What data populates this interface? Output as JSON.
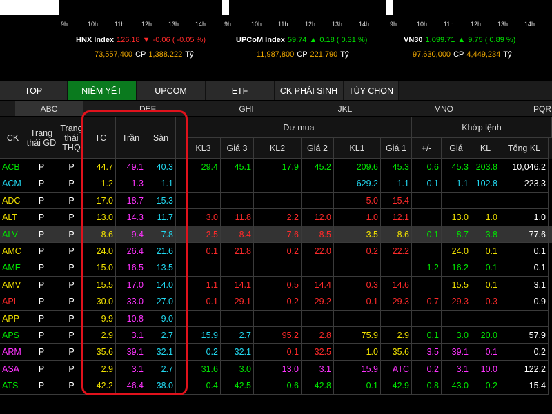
{
  "indices": [
    {
      "times": [
        "9h",
        "10h",
        "11h",
        "12h",
        "13h",
        "14h"
      ],
      "name": "HNX Index",
      "value": "126.18",
      "arrow": "▼",
      "change": "-0.06 ( -0.05 %)",
      "direction": "down",
      "volume": "73,557,400",
      "volume_unit": "CP",
      "turnover": "1,388.222",
      "turnover_unit": "Tỷ"
    },
    {
      "times": [
        "9h",
        "10h",
        "11h",
        "12h",
        "13h",
        "14h"
      ],
      "name": "UPCoM Index",
      "value": "59.74",
      "arrow": "▲",
      "change": "0.18 ( 0.31 %)",
      "direction": "up",
      "volume": "11,987,800",
      "volume_unit": "CP",
      "turnover": "221.790",
      "turnover_unit": "Tỷ"
    },
    {
      "times": [
        "9h",
        "10h",
        "11h",
        "12h",
        "13h",
        "14h"
      ],
      "name": "VN30",
      "value": "1,099.71",
      "arrow": "▲",
      "change": "9.75 ( 0.89 %)",
      "direction": "up",
      "volume": "97,630,000",
      "volume_unit": "CP",
      "turnover": "4,449,234",
      "turnover_unit": "Tỷ"
    }
  ],
  "tabs": [
    "TOP",
    "NIÊM YẾT",
    "UPCOM",
    "ETF",
    "CK PHÁI SINH",
    "TÙY CHỌN"
  ],
  "active_tab": 1,
  "subtabs": [
    "ABC",
    "DEF",
    "GHI",
    "JKL",
    "MNO",
    "PQR"
  ],
  "active_subtab": 0,
  "colors": {
    "up": "#00e600",
    "down": "#ff2a2a",
    "ref": "#f0e000",
    "ceil": "#ff33ff",
    "floor": "#22d8f0"
  },
  "table": {
    "headers": {
      "ck": "CK",
      "gd": "Trạng thái GD",
      "thq": "Trạng thái THQ",
      "tc": "TC",
      "tran": "Trần",
      "san": "Sàn",
      "bid_group": "Dư mua",
      "match_group": "Khớp lệnh",
      "sub": [
        "KL3",
        "Giá 3",
        "KL2",
        "Giá 2",
        "KL1",
        "Giá 1",
        "+/-",
        "Giá",
        "KL",
        "Tổng KL"
      ]
    },
    "highlighted_row": 4,
    "rows": [
      [
        "ACB",
        "P",
        "P",
        "44.7",
        "49.1",
        "40.3",
        "29.4",
        "45.1",
        "17.9",
        "45.2",
        "209.6",
        "45.3",
        "0.6",
        "45.3",
        "203.8",
        "10,046.2"
      ],
      [
        "ACM",
        "P",
        "P",
        "1.2",
        "1.3",
        "1.1",
        null,
        null,
        null,
        null,
        "629.2",
        "1.1",
        "-0.1",
        "1.1",
        "102.8",
        "223.3"
      ],
      [
        "ADC",
        "P",
        "P",
        "17.0",
        "18.7",
        "15.3",
        null,
        null,
        null,
        null,
        "5.0",
        "15.4",
        null,
        null,
        null,
        null
      ],
      [
        "ALT",
        "P",
        "P",
        "13.0",
        "14.3",
        "11.7",
        "3.0",
        "11.8",
        "2.2",
        "12.0",
        "1.0",
        "12.1",
        null,
        "13.0",
        "1.0",
        "1.0"
      ],
      [
        "ALV",
        "P",
        "P",
        "8.6",
        "9.4",
        "7.8",
        "2.5",
        "8.4",
        "7.6",
        "8.5",
        "3.5",
        "8.6",
        "0.1",
        "8.7",
        "3.8",
        "77.6"
      ],
      [
        "AMC",
        "P",
        "P",
        "24.0",
        "26.4",
        "21.6",
        "0.1",
        "21.8",
        "0.2",
        "22.0",
        "0.2",
        "22.2",
        null,
        "24.0",
        "0.1",
        "0.1"
      ],
      [
        "AME",
        "P",
        "P",
        "15.0",
        "16.5",
        "13.5",
        null,
        null,
        null,
        null,
        null,
        null,
        "1.2",
        "16.2",
        "0.1",
        "0.1"
      ],
      [
        "AMV",
        "P",
        "P",
        "15.5",
        "17.0",
        "14.0",
        "1.1",
        "14.1",
        "0.5",
        "14.4",
        "0.3",
        "14.6",
        null,
        "15.5",
        "0.1",
        "3.1"
      ],
      [
        "API",
        "P",
        "P",
        "30.0",
        "33.0",
        "27.0",
        "0.1",
        "29.1",
        "0.2",
        "29.2",
        "0.1",
        "29.3",
        "-0.7",
        "29.3",
        "0.3",
        "0.9"
      ],
      [
        "APP",
        "P",
        "P",
        "9.9",
        "10.8",
        "9.0",
        null,
        null,
        null,
        null,
        null,
        null,
        null,
        null,
        null,
        null
      ],
      [
        "APS",
        "P",
        "P",
        "2.9",
        "3.1",
        "2.7",
        "15.9",
        "2.7",
        "95.2",
        "2.8",
        "75.9",
        "2.9",
        "0.1",
        "3.0",
        "20.0",
        "57.9"
      ],
      [
        "ARM",
        "P",
        "P",
        "35.6",
        "39.1",
        "32.1",
        "0.2",
        "32.1",
        "0.1",
        "32.5",
        "1.0",
        "35.6",
        "3.5",
        "39.1",
        "0.1",
        "0.2"
      ],
      [
        "ASA",
        "P",
        "P",
        "2.9",
        "3.1",
        "2.7",
        "31.6",
        "3.0",
        "13.0",
        "3.1",
        "15.9",
        "ATC",
        "0.2",
        "3.1",
        "10.0",
        "122.2"
      ],
      [
        "ATS",
        "P",
        "P",
        "42.2",
        "46.4",
        "38.0",
        "0.4",
        "42.5",
        "0.6",
        "42.8",
        "0.1",
        "42.9",
        "0.8",
        "43.0",
        "0.2",
        "15.4"
      ]
    ]
  }
}
